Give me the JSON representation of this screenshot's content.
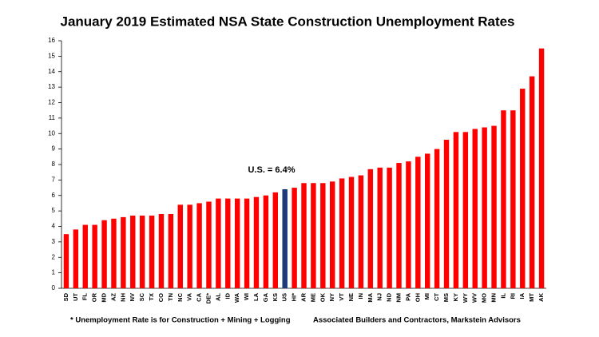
{
  "chart_data": {
    "type": "bar",
    "title": "January 2019 Estimated NSA State Construction Unemployment Rates",
    "annotation": "U.S. = 6.4%",
    "footnote": "* Unemployment Rate is for Construction + Mining + Logging",
    "source": "Associated Builders and Contractors, Markstein Advisors",
    "categories": [
      "SD",
      "UT",
      "FL",
      "OR",
      "MD",
      "AZ",
      "NH",
      "NV",
      "SC",
      "TX",
      "CO",
      "TN",
      "NC",
      "VA",
      "CA",
      "DE*",
      "AL",
      "ID",
      "WA",
      "WI",
      "LA",
      "GA",
      "KS",
      "US",
      "HI*",
      "AR",
      "ME",
      "OK",
      "NY",
      "VT",
      "NE",
      "IN",
      "MA",
      "NJ",
      "ND",
      "NM",
      "PA",
      "OH",
      "MI",
      "CT",
      "MS",
      "KY",
      "WY",
      "WV",
      "MO",
      "MN",
      "IL",
      "RI",
      "IA",
      "MT",
      "AK"
    ],
    "values": [
      3.5,
      3.8,
      4.1,
      4.1,
      4.4,
      4.5,
      4.6,
      4.7,
      4.7,
      4.7,
      4.8,
      4.8,
      5.4,
      5.4,
      5.5,
      5.6,
      5.8,
      5.8,
      5.8,
      5.8,
      5.9,
      6.0,
      6.2,
      6.4,
      6.5,
      6.8,
      6.8,
      6.8,
      6.9,
      7.1,
      7.2,
      7.3,
      7.7,
      7.8,
      7.8,
      8.1,
      8.2,
      8.5,
      8.7,
      9.0,
      9.6,
      10.1,
      10.1,
      10.3,
      10.4,
      10.5,
      11.5,
      11.5,
      12.9,
      13.7,
      15.5
    ],
    "colors": [
      "#ff0000",
      "#ff0000",
      "#ff0000",
      "#ff0000",
      "#ff0000",
      "#ff0000",
      "#ff0000",
      "#ff0000",
      "#ff0000",
      "#ff0000",
      "#ff0000",
      "#ff0000",
      "#ff0000",
      "#ff0000",
      "#ff0000",
      "#ff0000",
      "#ff0000",
      "#ff0000",
      "#ff0000",
      "#ff0000",
      "#ff0000",
      "#ff0000",
      "#ff0000",
      "#1f3a7a",
      "#ff0000",
      "#ff0000",
      "#ff0000",
      "#ff0000",
      "#ff0000",
      "#ff0000",
      "#ff0000",
      "#ff0000",
      "#ff0000",
      "#ff0000",
      "#ff0000",
      "#ff0000",
      "#ff0000",
      "#ff0000",
      "#ff0000",
      "#ff0000",
      "#ff0000",
      "#ff0000",
      "#ff0000",
      "#ff0000",
      "#ff0000",
      "#ff0000",
      "#ff0000",
      "#ff0000",
      "#ff0000",
      "#ff0000",
      "#ff0000"
    ],
    "ylim": [
      0,
      16
    ],
    "yticks": [
      0,
      1,
      2,
      3,
      4,
      5,
      6,
      7,
      8,
      9,
      10,
      11,
      12,
      13,
      14,
      15,
      16
    ],
    "grid": false
  }
}
